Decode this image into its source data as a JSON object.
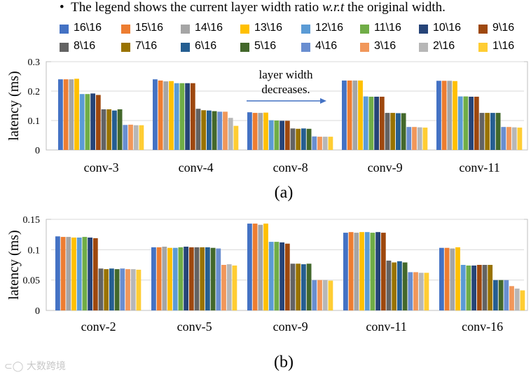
{
  "note": {
    "prefix": "The legend shows the current layer width ratio",
    "italic": "w.r.t",
    "suffix": "the original width."
  },
  "legend": [
    {
      "label": "16\\16",
      "color": "#4472C4"
    },
    {
      "label": "15\\16",
      "color": "#ED7D31"
    },
    {
      "label": "14\\16",
      "color": "#A5A5A5"
    },
    {
      "label": "13\\16",
      "color": "#FFC000"
    },
    {
      "label": "12\\16",
      "color": "#5B9BD5"
    },
    {
      "label": "11\\16",
      "color": "#70AD47"
    },
    {
      "label": "10\\16",
      "color": "#264478"
    },
    {
      "label": "9\\16",
      "color": "#9E480E"
    },
    {
      "label": "8\\16",
      "color": "#636363"
    },
    {
      "label": "7\\16",
      "color": "#997300"
    },
    {
      "label": "6\\16",
      "color": "#255E91"
    },
    {
      "label": "5\\16",
      "color": "#43682B"
    },
    {
      "label": "4\\16",
      "color": "#698ED0"
    },
    {
      "label": "3\\16",
      "color": "#F1975A"
    },
    {
      "label": "2\\16",
      "color": "#B7B7B7"
    },
    {
      "label": "1\\16",
      "color": "#FFCD33"
    }
  ],
  "watermark": "大数跨境",
  "chart_data": [
    {
      "type": "bar",
      "panel_label": "(a)",
      "ylabel": "latency (ms)",
      "ylim": [
        0,
        0.3
      ],
      "yticks": [
        "0",
        "0.1",
        "0.2",
        "0.3"
      ],
      "grid": true,
      "annotation": {
        "line1": "layer width",
        "line2": "decreases."
      },
      "categories": [
        "conv-3",
        "conv-4",
        "conv-8",
        "conv-9",
        "conv-11"
      ],
      "series_values": [
        [
          0.24,
          0.24,
          0.24,
          0.242,
          0.19,
          0.19,
          0.192,
          0.187,
          0.138,
          0.138,
          0.134,
          0.138,
          0.085,
          0.086,
          0.084,
          0.084
        ],
        [
          0.24,
          0.236,
          0.233,
          0.234,
          0.227,
          0.227,
          0.227,
          0.227,
          0.14,
          0.135,
          0.134,
          0.132,
          0.13,
          0.13,
          0.109,
          0.082
        ],
        [
          0.128,
          0.126,
          0.126,
          0.127,
          0.101,
          0.1,
          0.099,
          0.099,
          0.073,
          0.072,
          0.073,
          0.072,
          0.046,
          0.045,
          0.045,
          0.045
        ],
        [
          0.236,
          0.236,
          0.236,
          0.236,
          0.182,
          0.181,
          0.181,
          0.181,
          0.126,
          0.126,
          0.125,
          0.125,
          0.078,
          0.078,
          0.077,
          0.076
        ],
        [
          0.235,
          0.235,
          0.235,
          0.234,
          0.182,
          0.182,
          0.181,
          0.181,
          0.126,
          0.126,
          0.126,
          0.126,
          0.078,
          0.078,
          0.077,
          0.076
        ]
      ]
    },
    {
      "type": "bar",
      "panel_label": "(b)",
      "ylabel": "latency (ms)",
      "ylim": [
        0,
        0.15
      ],
      "yticks": [
        "0",
        "0.05",
        "0.1",
        "0.15"
      ],
      "grid": true,
      "categories": [
        "conv-2",
        "conv-5",
        "conv-9",
        "conv-11",
        "conv-16"
      ],
      "series_values": [
        [
          0.122,
          0.121,
          0.121,
          0.12,
          0.12,
          0.121,
          0.12,
          0.119,
          0.069,
          0.068,
          0.069,
          0.068,
          0.069,
          0.068,
          0.068,
          0.067
        ],
        [
          0.104,
          0.104,
          0.105,
          0.103,
          0.103,
          0.104,
          0.105,
          0.104,
          0.104,
          0.104,
          0.104,
          0.103,
          0.102,
          0.075,
          0.076,
          0.074
        ],
        [
          0.143,
          0.143,
          0.141,
          0.143,
          0.113,
          0.113,
          0.112,
          0.11,
          0.077,
          0.077,
          0.076,
          0.077,
          0.05,
          0.05,
          0.05,
          0.049
        ],
        [
          0.128,
          0.129,
          0.128,
          0.129,
          0.129,
          0.128,
          0.129,
          0.128,
          0.082,
          0.079,
          0.081,
          0.079,
          0.063,
          0.063,
          0.062,
          0.062
        ],
        [
          0.103,
          0.103,
          0.102,
          0.104,
          0.075,
          0.074,
          0.074,
          0.075,
          0.075,
          0.075,
          0.05,
          0.05,
          0.05,
          0.04,
          0.036,
          0.033
        ]
      ]
    }
  ]
}
